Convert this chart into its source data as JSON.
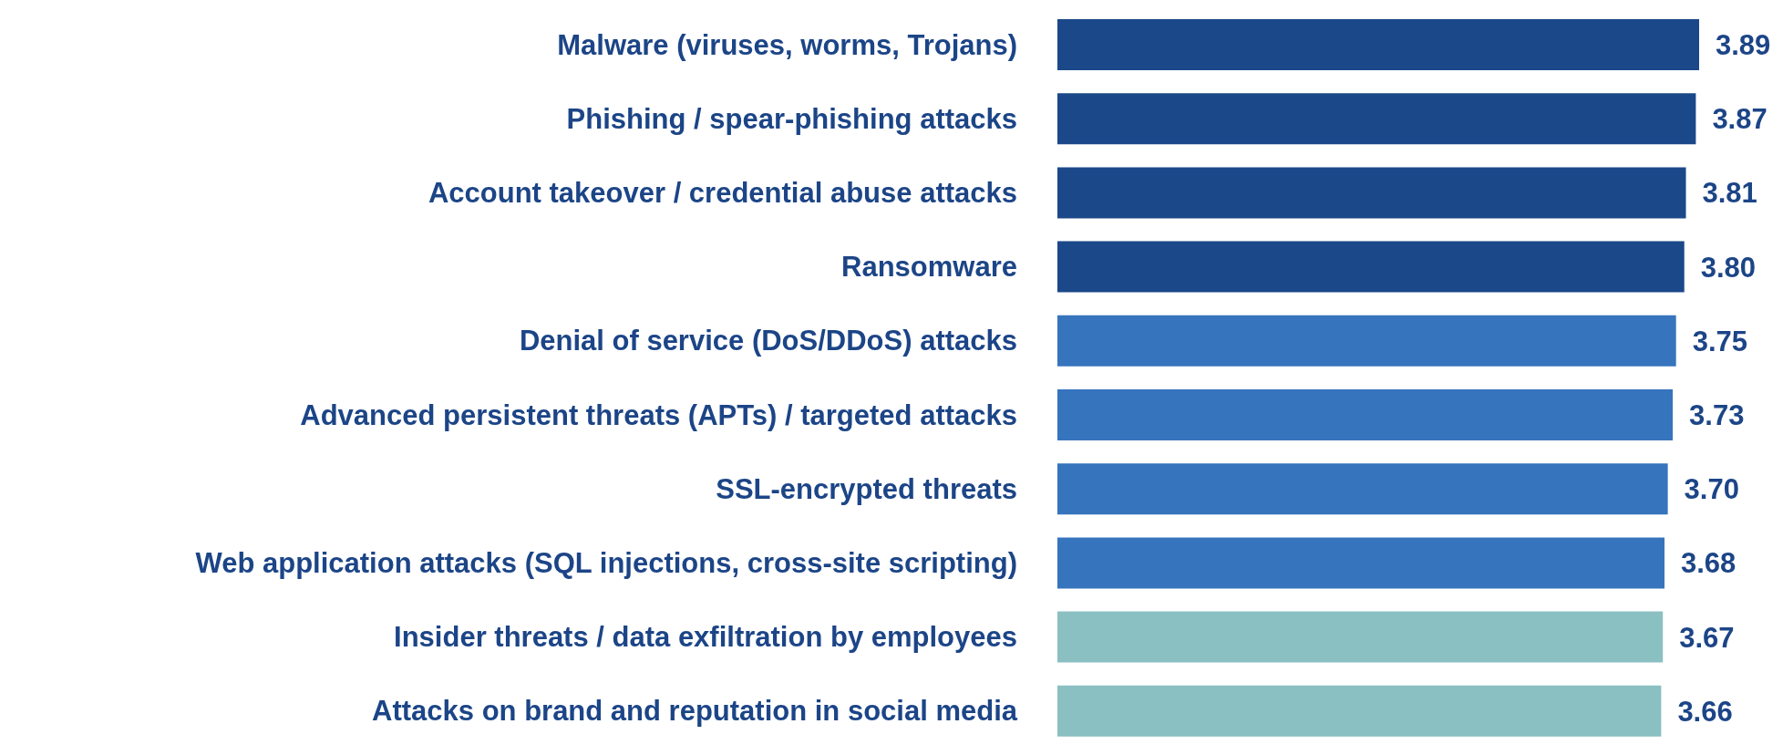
{
  "chart_data": {
    "type": "bar",
    "orientation": "horizontal",
    "categories": [
      "Malware (viruses, worms, Trojans)",
      "Phishing / spear-phishing attacks",
      "Account takeover / credential abuse attacks",
      "Ransomware",
      "Denial of service (DoS/DDoS) attacks",
      "Advanced persistent threats (APTs) / targeted attacks",
      "SSL-encrypted threats",
      "Web application attacks (SQL injections, cross-site scripting)",
      "Insider threats / data exfiltration by employees",
      "Attacks on brand and reputation in social media"
    ],
    "values": [
      3.89,
      3.87,
      3.81,
      3.8,
      3.75,
      3.73,
      3.7,
      3.68,
      3.67,
      3.66
    ],
    "colors": [
      "#1b4889",
      "#1b4889",
      "#1b4889",
      "#1b4889",
      "#3674bd",
      "#3674bd",
      "#3674bd",
      "#3674bd",
      "#8bc0c2",
      "#8bc0c2"
    ],
    "value_labels": [
      "3.89",
      "3.87",
      "3.81",
      "3.80",
      "3.75",
      "3.73",
      "3.70",
      "3.68",
      "3.67",
      "3.66"
    ],
    "tick_labels": false,
    "grid": false,
    "legend": false
  }
}
